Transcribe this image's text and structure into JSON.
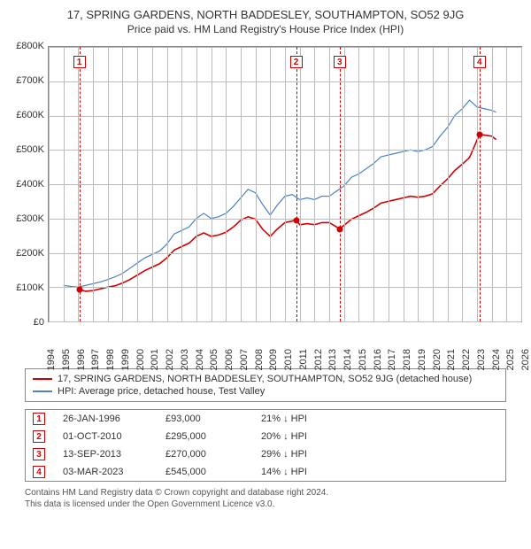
{
  "title": "17, SPRING GARDENS, NORTH BADDESLEY, SOUTHAMPTON, SO52 9JG",
  "subtitle": "Price paid vs. HM Land Registry's House Price Index (HPI)",
  "chart": {
    "type": "line",
    "background_color": "#ffffff",
    "grid_color": "#bbbbbb",
    "axis_font_size": 11,
    "y": {
      "min": 0,
      "max": 800000,
      "tick_step": 100000,
      "labels": [
        "£0",
        "£100K",
        "£200K",
        "£300K",
        "£400K",
        "£500K",
        "£600K",
        "£700K",
        "£800K"
      ]
    },
    "x": {
      "min": 1994,
      "max": 2026,
      "tick_step": 1,
      "labels": [
        "1994",
        "1995",
        "1996",
        "1997",
        "1998",
        "1999",
        "2000",
        "2001",
        "2002",
        "2003",
        "2004",
        "2005",
        "2006",
        "2007",
        "2008",
        "2009",
        "2010",
        "2011",
        "2012",
        "2013",
        "2014",
        "2015",
        "2016",
        "2017",
        "2018",
        "2019",
        "2020",
        "2021",
        "2022",
        "2023",
        "2024",
        "2025",
        "2026"
      ]
    },
    "series": [
      {
        "name": "hpi",
        "label": "HPI: Average price, detached house, Test Valley",
        "color": "#4a7fc4",
        "line_width": 1.2,
        "points": [
          [
            1995.0,
            105000
          ],
          [
            1995.5,
            102000
          ],
          [
            1996.0,
            100000
          ],
          [
            1996.5,
            105000
          ],
          [
            1997.0,
            110000
          ],
          [
            1997.5,
            115000
          ],
          [
            1998.0,
            122000
          ],
          [
            1998.5,
            130000
          ],
          [
            1999.0,
            140000
          ],
          [
            1999.5,
            155000
          ],
          [
            2000.0,
            170000
          ],
          [
            2000.5,
            185000
          ],
          [
            2001.0,
            195000
          ],
          [
            2001.5,
            205000
          ],
          [
            2002.0,
            225000
          ],
          [
            2002.5,
            255000
          ],
          [
            2003.0,
            265000
          ],
          [
            2003.5,
            275000
          ],
          [
            2004.0,
            300000
          ],
          [
            2004.5,
            315000
          ],
          [
            2005.0,
            300000
          ],
          [
            2005.5,
            305000
          ],
          [
            2006.0,
            315000
          ],
          [
            2006.5,
            335000
          ],
          [
            2007.0,
            360000
          ],
          [
            2007.5,
            385000
          ],
          [
            2008.0,
            375000
          ],
          [
            2008.5,
            340000
          ],
          [
            2009.0,
            310000
          ],
          [
            2009.5,
            340000
          ],
          [
            2010.0,
            365000
          ],
          [
            2010.5,
            370000
          ],
          [
            2011.0,
            355000
          ],
          [
            2011.5,
            360000
          ],
          [
            2012.0,
            355000
          ],
          [
            2012.5,
            365000
          ],
          [
            2013.0,
            365000
          ],
          [
            2013.5,
            380000
          ],
          [
            2014.0,
            395000
          ],
          [
            2014.5,
            420000
          ],
          [
            2015.0,
            430000
          ],
          [
            2015.5,
            445000
          ],
          [
            2016.0,
            460000
          ],
          [
            2016.5,
            480000
          ],
          [
            2017.0,
            485000
          ],
          [
            2017.5,
            490000
          ],
          [
            2018.0,
            495000
          ],
          [
            2018.5,
            500000
          ],
          [
            2019.0,
            495000
          ],
          [
            2019.5,
            500000
          ],
          [
            2020.0,
            510000
          ],
          [
            2020.5,
            540000
          ],
          [
            2021.0,
            565000
          ],
          [
            2021.5,
            600000
          ],
          [
            2022.0,
            620000
          ],
          [
            2022.5,
            645000
          ],
          [
            2023.0,
            625000
          ],
          [
            2023.5,
            620000
          ],
          [
            2024.0,
            615000
          ],
          [
            2024.3,
            610000
          ]
        ]
      },
      {
        "name": "price_paid",
        "label": "17, SPRING GARDENS, NORTH BADDESLEY, SOUTHAMPTON, SO52 9JG (detached house)",
        "color": "#d00000",
        "line_width": 1.6,
        "points": [
          [
            1996.07,
            93000
          ],
          [
            1996.5,
            88000
          ],
          [
            1997.0,
            90000
          ],
          [
            1997.5,
            95000
          ],
          [
            1998.0,
            100000
          ],
          [
            1998.5,
            104000
          ],
          [
            1999.0,
            112000
          ],
          [
            1999.5,
            122000
          ],
          [
            2000.0,
            135000
          ],
          [
            2000.5,
            148000
          ],
          [
            2001.0,
            158000
          ],
          [
            2001.5,
            168000
          ],
          [
            2002.0,
            185000
          ],
          [
            2002.5,
            208000
          ],
          [
            2003.0,
            218000
          ],
          [
            2003.5,
            228000
          ],
          [
            2004.0,
            248000
          ],
          [
            2004.5,
            258000
          ],
          [
            2005.0,
            248000
          ],
          [
            2005.5,
            252000
          ],
          [
            2006.0,
            260000
          ],
          [
            2006.5,
            275000
          ],
          [
            2007.0,
            295000
          ],
          [
            2007.5,
            305000
          ],
          [
            2008.0,
            298000
          ],
          [
            2008.5,
            268000
          ],
          [
            2009.0,
            248000
          ],
          [
            2009.5,
            270000
          ],
          [
            2010.0,
            288000
          ],
          [
            2010.75,
            295000
          ],
          [
            2011.0,
            282000
          ],
          [
            2011.5,
            285000
          ],
          [
            2012.0,
            282000
          ],
          [
            2012.5,
            288000
          ],
          [
            2013.0,
            288000
          ],
          [
            2013.7,
            270000
          ],
          [
            2014.0,
            280000
          ],
          [
            2014.5,
            298000
          ],
          [
            2015.0,
            308000
          ],
          [
            2015.5,
            318000
          ],
          [
            2016.0,
            330000
          ],
          [
            2016.5,
            345000
          ],
          [
            2017.0,
            350000
          ],
          [
            2017.5,
            355000
          ],
          [
            2018.0,
            360000
          ],
          [
            2018.5,
            365000
          ],
          [
            2019.0,
            362000
          ],
          [
            2019.5,
            365000
          ],
          [
            2020.0,
            372000
          ],
          [
            2020.5,
            395000
          ],
          [
            2021.0,
            415000
          ],
          [
            2021.5,
            440000
          ],
          [
            2022.0,
            458000
          ],
          [
            2022.5,
            478000
          ],
          [
            2023.17,
            545000
          ],
          [
            2023.5,
            543000
          ],
          [
            2024.0,
            540000
          ],
          [
            2024.3,
            530000
          ]
        ]
      }
    ],
    "sale_dots": {
      "color": "#d00000",
      "radius": 3.5,
      "points": [
        [
          1996.07,
          93000
        ],
        [
          2010.75,
          295000
        ],
        [
          2013.7,
          270000
        ],
        [
          2023.17,
          545000
        ]
      ]
    },
    "markers": [
      {
        "num": "1",
        "x": 1996.07,
        "color": "#d00000"
      },
      {
        "num": "2",
        "x": 2010.75,
        "color": "#d00000"
      },
      {
        "num": "3",
        "x": 2013.7,
        "color": "#d00000"
      },
      {
        "num": "4",
        "x": 2023.17,
        "color": "#d00000"
      }
    ]
  },
  "legend": {
    "items": [
      {
        "color": "#d00000",
        "label": "17, SPRING GARDENS, NORTH BADDESLEY, SOUTHAMPTON, SO52 9JG (detached house)"
      },
      {
        "color": "#4a7fc4",
        "label": "HPI: Average price, detached house, Test Valley"
      }
    ]
  },
  "sales": [
    {
      "num": "1",
      "date": "26-JAN-1996",
      "price": "£93,000",
      "diff": "21% ↓ HPI"
    },
    {
      "num": "2",
      "date": "01-OCT-2010",
      "price": "£295,000",
      "diff": "20% ↓ HPI"
    },
    {
      "num": "3",
      "date": "13-SEP-2013",
      "price": "£270,000",
      "diff": "29% ↓ HPI"
    },
    {
      "num": "4",
      "date": "03-MAR-2023",
      "price": "£545,000",
      "diff": "14% ↓ HPI"
    }
  ],
  "footer": {
    "line1": "Contains HM Land Registry data © Crown copyright and database right 2024.",
    "line2": "This data is licensed under the Open Government Licence v3.0."
  }
}
